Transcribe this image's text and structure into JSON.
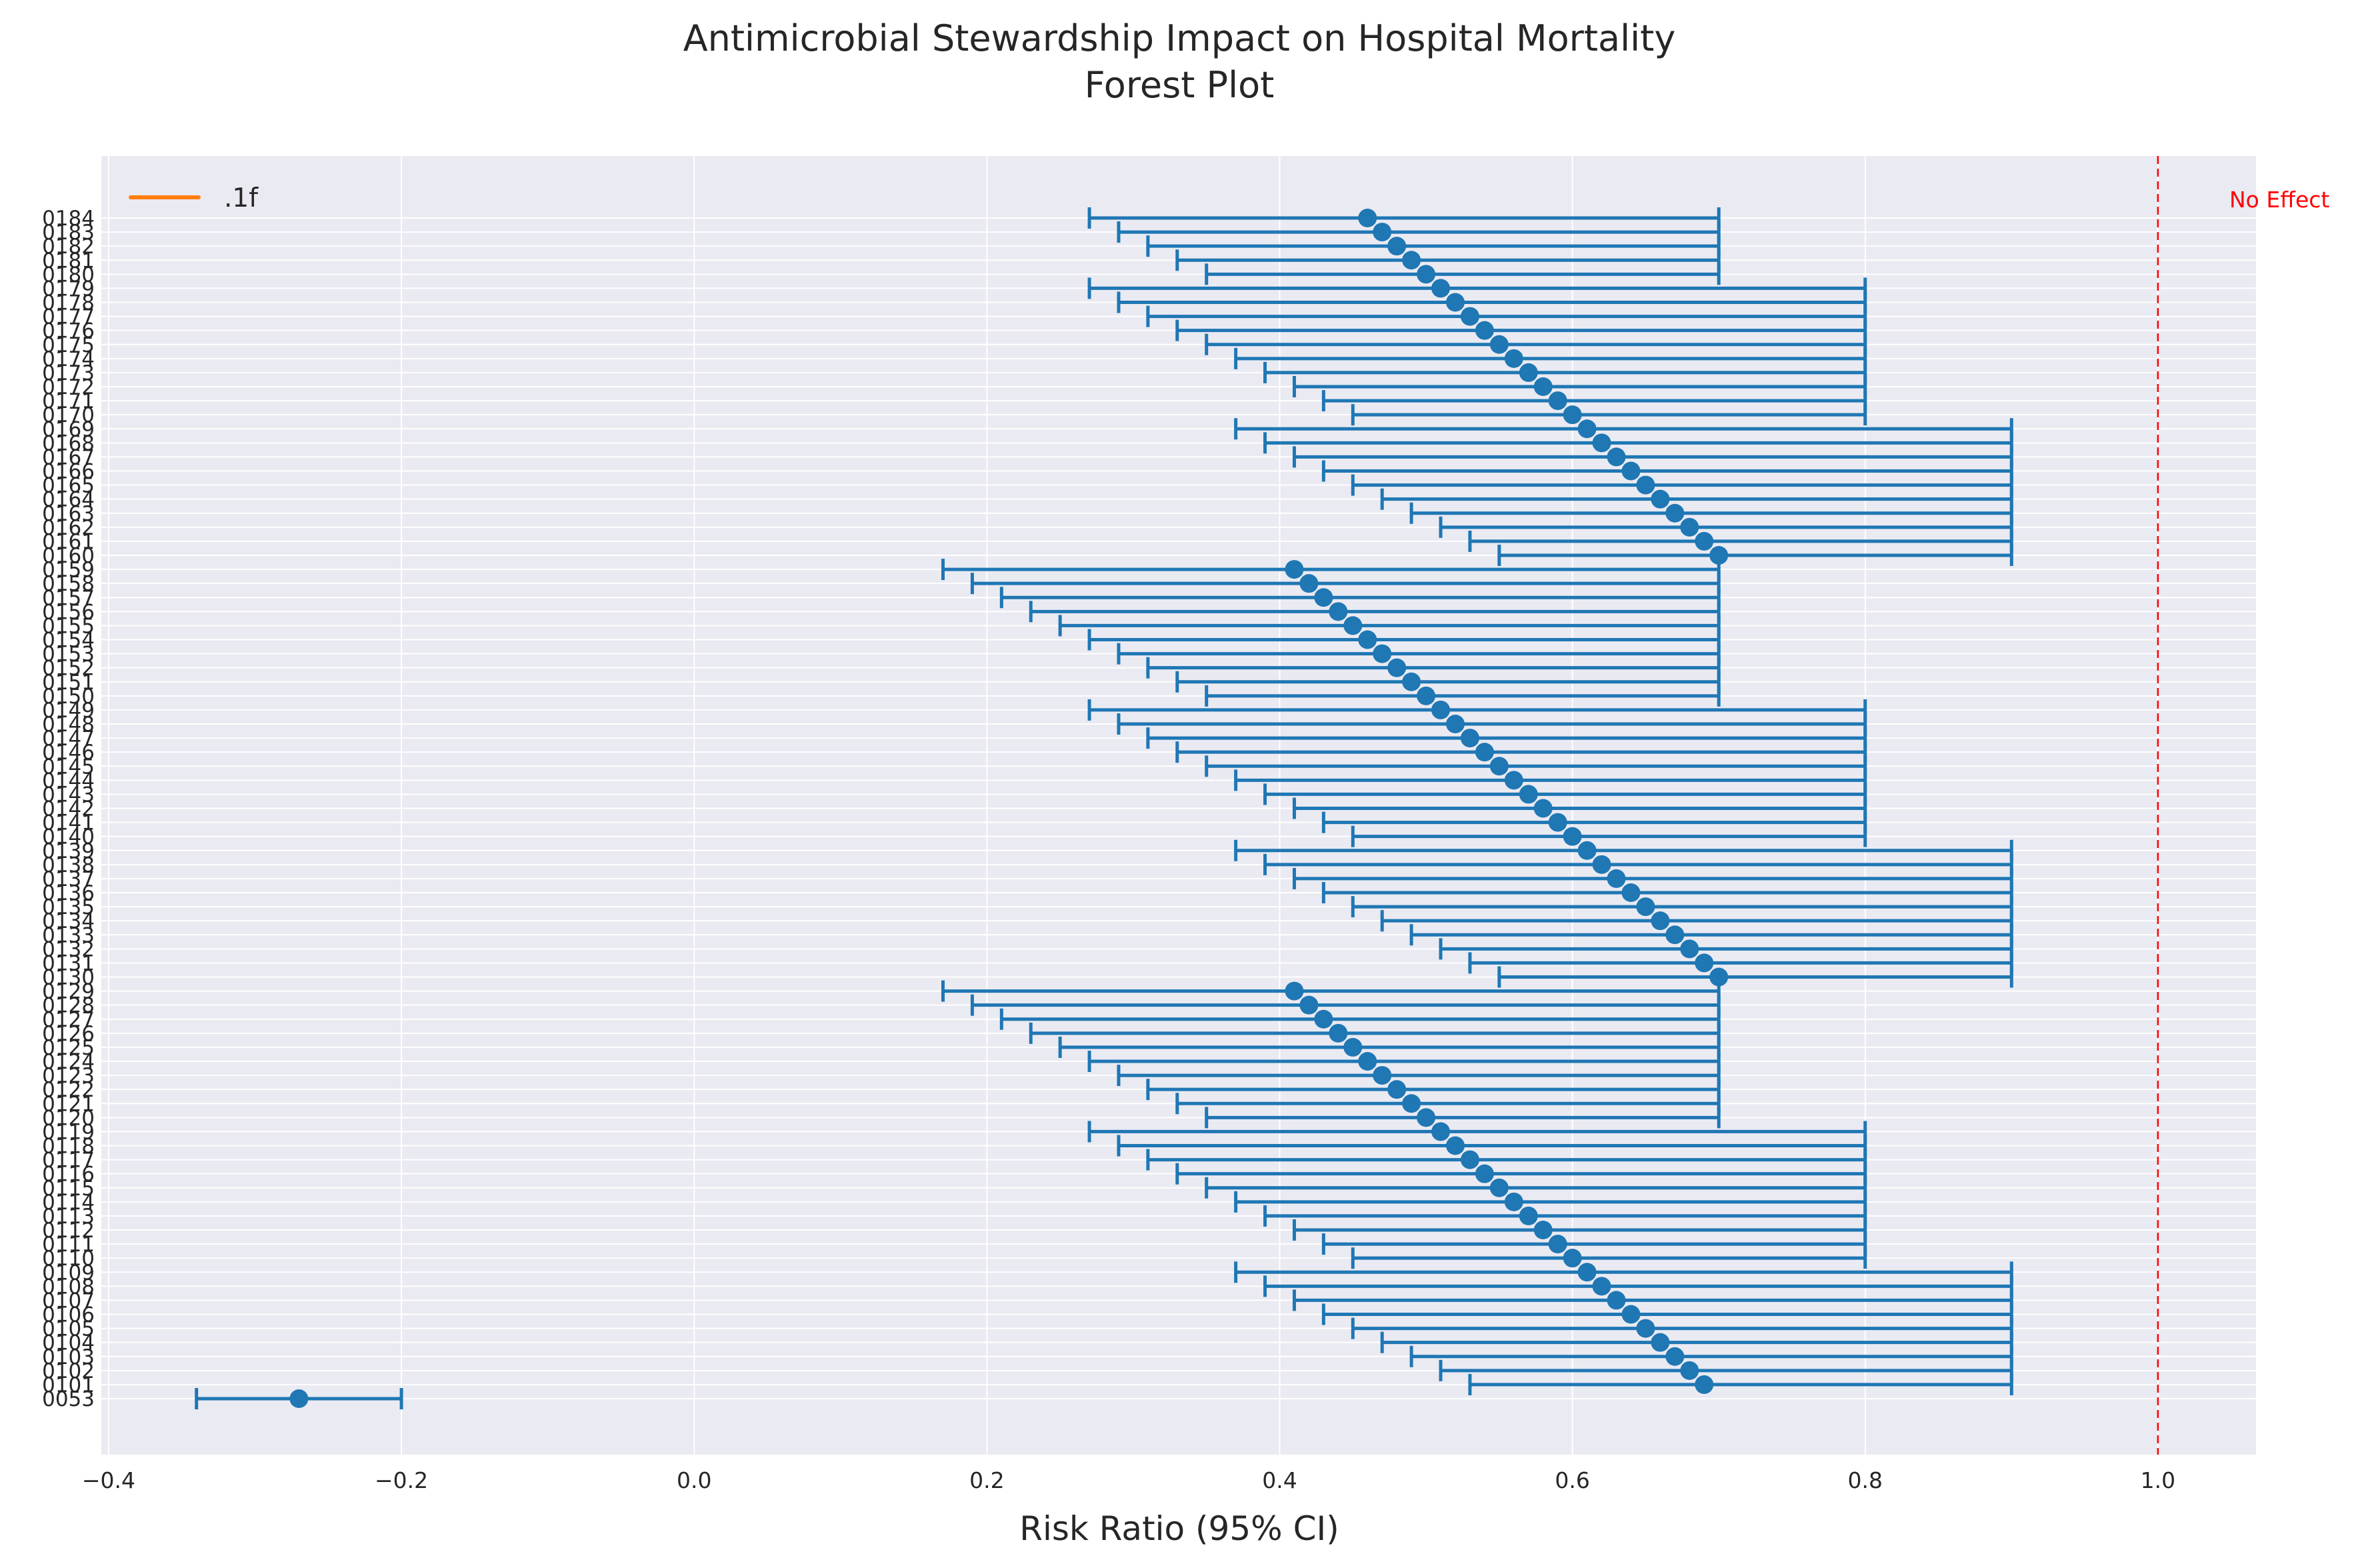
{
  "chart_data": {
    "type": "scatter",
    "title_lines": [
      "Antimicrobial Stewardship Impact on Hospital Mortality",
      "Forest Plot"
    ],
    "xlabel": "Risk Ratio (95% CI)",
    "ylabel": "",
    "xlim": [
      -0.405,
      1.067
    ],
    "xticks": [
      -0.4,
      -0.2,
      0.0,
      0.2,
      0.4,
      0.6,
      0.8,
      1.0
    ],
    "xtick_labels": [
      "−0.4",
      "−0.2",
      "0.0",
      "0.2",
      "0.4",
      "0.6",
      "0.8",
      "1.0"
    ],
    "grid": true,
    "legend": {
      "position": "upper-left",
      "entries": [
        {
          "label": ".1f",
          "color": "#ff7f0e"
        }
      ]
    },
    "reference_line": {
      "x": 1.0,
      "color": "#ff0000",
      "style": "dashed",
      "label": "No Effect"
    },
    "series_color": "#1f77b4",
    "studies": [
      {
        "label": "0053",
        "rr": -0.27,
        "lo": -0.34,
        "hi": -0.2
      },
      {
        "label": "0101",
        "rr": 0.69,
        "lo": 0.53,
        "hi": 0.9
      },
      {
        "label": "0102",
        "rr": 0.68,
        "lo": 0.51,
        "hi": 0.9
      },
      {
        "label": "0103",
        "rr": 0.67,
        "lo": 0.49,
        "hi": 0.9
      },
      {
        "label": "0104",
        "rr": 0.66,
        "lo": 0.47,
        "hi": 0.9
      },
      {
        "label": "0105",
        "rr": 0.65,
        "lo": 0.45,
        "hi": 0.9
      },
      {
        "label": "0106",
        "rr": 0.64,
        "lo": 0.43,
        "hi": 0.9
      },
      {
        "label": "0107",
        "rr": 0.63,
        "lo": 0.41,
        "hi": 0.9
      },
      {
        "label": "0108",
        "rr": 0.62,
        "lo": 0.39,
        "hi": 0.9
      },
      {
        "label": "0109",
        "rr": 0.61,
        "lo": 0.37,
        "hi": 0.9
      },
      {
        "label": "0110",
        "rr": 0.6,
        "lo": 0.45,
        "hi": 0.8
      },
      {
        "label": "0111",
        "rr": 0.59,
        "lo": 0.43,
        "hi": 0.8
      },
      {
        "label": "0112",
        "rr": 0.58,
        "lo": 0.41,
        "hi": 0.8
      },
      {
        "label": "0113",
        "rr": 0.57,
        "lo": 0.39,
        "hi": 0.8
      },
      {
        "label": "0114",
        "rr": 0.56,
        "lo": 0.37,
        "hi": 0.8
      },
      {
        "label": "0115",
        "rr": 0.55,
        "lo": 0.35,
        "hi": 0.8
      },
      {
        "label": "0116",
        "rr": 0.54,
        "lo": 0.33,
        "hi": 0.8
      },
      {
        "label": "0117",
        "rr": 0.53,
        "lo": 0.31,
        "hi": 0.8
      },
      {
        "label": "0118",
        "rr": 0.52,
        "lo": 0.29,
        "hi": 0.8
      },
      {
        "label": "0119",
        "rr": 0.51,
        "lo": 0.27,
        "hi": 0.8
      },
      {
        "label": "0120",
        "rr": 0.5,
        "lo": 0.35,
        "hi": 0.7
      },
      {
        "label": "0121",
        "rr": 0.49,
        "lo": 0.33,
        "hi": 0.7
      },
      {
        "label": "0122",
        "rr": 0.48,
        "lo": 0.31,
        "hi": 0.7
      },
      {
        "label": "0123",
        "rr": 0.47,
        "lo": 0.29,
        "hi": 0.7
      },
      {
        "label": "0124",
        "rr": 0.46,
        "lo": 0.27,
        "hi": 0.7
      },
      {
        "label": "0125",
        "rr": 0.45,
        "lo": 0.25,
        "hi": 0.7
      },
      {
        "label": "0126",
        "rr": 0.44,
        "lo": 0.23,
        "hi": 0.7
      },
      {
        "label": "0127",
        "rr": 0.43,
        "lo": 0.21,
        "hi": 0.7
      },
      {
        "label": "0128",
        "rr": 0.42,
        "lo": 0.19,
        "hi": 0.7
      },
      {
        "label": "0129",
        "rr": 0.41,
        "lo": 0.17,
        "hi": 0.7
      },
      {
        "label": "0130",
        "rr": 0.7,
        "lo": 0.55,
        "hi": 0.9
      },
      {
        "label": "0131",
        "rr": 0.69,
        "lo": 0.53,
        "hi": 0.9
      },
      {
        "label": "0132",
        "rr": 0.68,
        "lo": 0.51,
        "hi": 0.9
      },
      {
        "label": "0133",
        "rr": 0.67,
        "lo": 0.49,
        "hi": 0.9
      },
      {
        "label": "0134",
        "rr": 0.66,
        "lo": 0.47,
        "hi": 0.9
      },
      {
        "label": "0135",
        "rr": 0.65,
        "lo": 0.45,
        "hi": 0.9
      },
      {
        "label": "0136",
        "rr": 0.64,
        "lo": 0.43,
        "hi": 0.9
      },
      {
        "label": "0137",
        "rr": 0.63,
        "lo": 0.41,
        "hi": 0.9
      },
      {
        "label": "0138",
        "rr": 0.62,
        "lo": 0.39,
        "hi": 0.9
      },
      {
        "label": "0139",
        "rr": 0.61,
        "lo": 0.37,
        "hi": 0.9
      },
      {
        "label": "0140",
        "rr": 0.6,
        "lo": 0.45,
        "hi": 0.8
      },
      {
        "label": "0141",
        "rr": 0.59,
        "lo": 0.43,
        "hi": 0.8
      },
      {
        "label": "0142",
        "rr": 0.58,
        "lo": 0.41,
        "hi": 0.8
      },
      {
        "label": "0143",
        "rr": 0.57,
        "lo": 0.39,
        "hi": 0.8
      },
      {
        "label": "0144",
        "rr": 0.56,
        "lo": 0.37,
        "hi": 0.8
      },
      {
        "label": "0145",
        "rr": 0.55,
        "lo": 0.35,
        "hi": 0.8
      },
      {
        "label": "0146",
        "rr": 0.54,
        "lo": 0.33,
        "hi": 0.8
      },
      {
        "label": "0147",
        "rr": 0.53,
        "lo": 0.31,
        "hi": 0.8
      },
      {
        "label": "0148",
        "rr": 0.52,
        "lo": 0.29,
        "hi": 0.8
      },
      {
        "label": "0149",
        "rr": 0.51,
        "lo": 0.27,
        "hi": 0.8
      },
      {
        "label": "0150",
        "rr": 0.5,
        "lo": 0.35,
        "hi": 0.7
      },
      {
        "label": "0151",
        "rr": 0.49,
        "lo": 0.33,
        "hi": 0.7
      },
      {
        "label": "0152",
        "rr": 0.48,
        "lo": 0.31,
        "hi": 0.7
      },
      {
        "label": "0153",
        "rr": 0.47,
        "lo": 0.29,
        "hi": 0.7
      },
      {
        "label": "0154",
        "rr": 0.46,
        "lo": 0.27,
        "hi": 0.7
      },
      {
        "label": "0155",
        "rr": 0.45,
        "lo": 0.25,
        "hi": 0.7
      },
      {
        "label": "0156",
        "rr": 0.44,
        "lo": 0.23,
        "hi": 0.7
      },
      {
        "label": "0157",
        "rr": 0.43,
        "lo": 0.21,
        "hi": 0.7
      },
      {
        "label": "0158",
        "rr": 0.42,
        "lo": 0.19,
        "hi": 0.7
      },
      {
        "label": "0159",
        "rr": 0.41,
        "lo": 0.17,
        "hi": 0.7
      },
      {
        "label": "0160",
        "rr": 0.7,
        "lo": 0.55,
        "hi": 0.9
      },
      {
        "label": "0161",
        "rr": 0.69,
        "lo": 0.53,
        "hi": 0.9
      },
      {
        "label": "0162",
        "rr": 0.68,
        "lo": 0.51,
        "hi": 0.9
      },
      {
        "label": "0163",
        "rr": 0.67,
        "lo": 0.49,
        "hi": 0.9
      },
      {
        "label": "0164",
        "rr": 0.66,
        "lo": 0.47,
        "hi": 0.9
      },
      {
        "label": "0165",
        "rr": 0.65,
        "lo": 0.45,
        "hi": 0.9
      },
      {
        "label": "0166",
        "rr": 0.64,
        "lo": 0.43,
        "hi": 0.9
      },
      {
        "label": "0167",
        "rr": 0.63,
        "lo": 0.41,
        "hi": 0.9
      },
      {
        "label": "0168",
        "rr": 0.62,
        "lo": 0.39,
        "hi": 0.9
      },
      {
        "label": "0169",
        "rr": 0.61,
        "lo": 0.37,
        "hi": 0.9
      },
      {
        "label": "0170",
        "rr": 0.6,
        "lo": 0.45,
        "hi": 0.8
      },
      {
        "label": "0171",
        "rr": 0.59,
        "lo": 0.43,
        "hi": 0.8
      },
      {
        "label": "0172",
        "rr": 0.58,
        "lo": 0.41,
        "hi": 0.8
      },
      {
        "label": "0173",
        "rr": 0.57,
        "lo": 0.39,
        "hi": 0.8
      },
      {
        "label": "0174",
        "rr": 0.56,
        "lo": 0.37,
        "hi": 0.8
      },
      {
        "label": "0175",
        "rr": 0.55,
        "lo": 0.35,
        "hi": 0.8
      },
      {
        "label": "0176",
        "rr": 0.54,
        "lo": 0.33,
        "hi": 0.8
      },
      {
        "label": "0177",
        "rr": 0.53,
        "lo": 0.31,
        "hi": 0.8
      },
      {
        "label": "0178",
        "rr": 0.52,
        "lo": 0.29,
        "hi": 0.8
      },
      {
        "label": "0179",
        "rr": 0.51,
        "lo": 0.27,
        "hi": 0.8
      },
      {
        "label": "0180",
        "rr": 0.5,
        "lo": 0.35,
        "hi": 0.7
      },
      {
        "label": "0181",
        "rr": 0.49,
        "lo": 0.33,
        "hi": 0.7
      },
      {
        "label": "0182",
        "rr": 0.48,
        "lo": 0.31,
        "hi": 0.7
      },
      {
        "label": "0183",
        "rr": 0.47,
        "lo": 0.29,
        "hi": 0.7
      },
      {
        "label": "0184",
        "rr": 0.46,
        "lo": 0.27,
        "hi": 0.7
      }
    ]
  }
}
